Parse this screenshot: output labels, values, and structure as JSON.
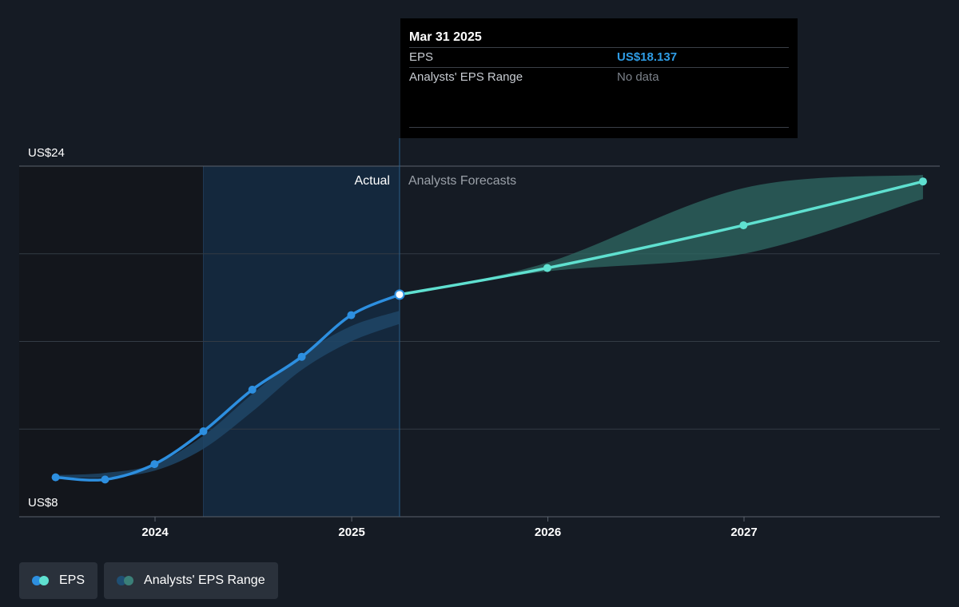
{
  "chart_data": {
    "type": "line",
    "y_axis": {
      "labels": [
        "US$24",
        "US$8"
      ],
      "range": [
        8,
        24
      ]
    },
    "x_axis": {
      "ticks": [
        "2024",
        "2025",
        "2026",
        "2027"
      ],
      "range": [
        "2023-06-15",
        "2027-11-30"
      ]
    },
    "section_labels": {
      "actual": "Actual",
      "forecast": "Analysts Forecasts"
    },
    "series": [
      {
        "name": "EPS",
        "kind": "actual",
        "points": [
          {
            "date": "2023-06-30",
            "value": 9.8
          },
          {
            "date": "2023-09-30",
            "value": 9.7
          },
          {
            "date": "2023-12-31",
            "value": 10.4
          },
          {
            "date": "2024-03-31",
            "value": 11.9
          },
          {
            "date": "2024-06-30",
            "value": 13.8
          },
          {
            "date": "2024-09-30",
            "value": 15.3
          },
          {
            "date": "2024-12-31",
            "value": 17.2
          },
          {
            "date": "2025-03-31",
            "value": 18.137
          }
        ]
      },
      {
        "name": "EPS",
        "kind": "forecast",
        "points": [
          {
            "date": "2025-03-31",
            "value": 18.137
          },
          {
            "date": "2025-12-31",
            "value": 19.35
          },
          {
            "date": "2026-12-31",
            "value": 21.3
          },
          {
            "date": "2027-11-30",
            "value": 23.3
          }
        ]
      },
      {
        "name": "Analysts' EPS Range",
        "kind": "range",
        "points": [
          {
            "date": "2023-06-30",
            "low": 9.8,
            "high": 9.9
          },
          {
            "date": "2023-09-30",
            "low": 9.8,
            "high": 10.0
          },
          {
            "date": "2023-12-31",
            "low": 10.1,
            "high": 10.4
          },
          {
            "date": "2024-03-31",
            "low": 11.1,
            "high": 11.7
          },
          {
            "date": "2024-06-30",
            "low": 12.8,
            "high": 13.6
          },
          {
            "date": "2024-09-30",
            "low": 14.7,
            "high": 15.4
          },
          {
            "date": "2024-12-31",
            "low": 16.0,
            "high": 16.7
          },
          {
            "date": "2025-03-31",
            "low": 16.8,
            "high": 17.4
          }
        ]
      },
      {
        "name": "Analysts' EPS Range",
        "kind": "forecast-range",
        "points": [
          {
            "date": "2025-03-31",
            "low": 18.137,
            "high": 18.137
          },
          {
            "date": "2025-12-31",
            "low": 19.2,
            "high": 19.6
          },
          {
            "date": "2026-12-31",
            "low": 20.0,
            "high": 23.0
          },
          {
            "date": "2027-11-30",
            "low": 22.5,
            "high": 23.6
          }
        ]
      }
    ],
    "grid": true
  },
  "tooltip": {
    "date": "Mar 31 2025",
    "rows": [
      {
        "label": "EPS",
        "value": "US$18.137"
      },
      {
        "label": "Analysts' EPS Range",
        "value": "No data"
      }
    ]
  },
  "legend": {
    "items": [
      {
        "label": "EPS",
        "color_a": "#2d8fe0",
        "color_b": "#5fe0d0"
      },
      {
        "label": "Analysts' EPS Range",
        "color_a": "#1f4f73",
        "color_b": "#3b7f78"
      }
    ]
  },
  "colors": {
    "actual_line": "#2d8fe0",
    "forecast_line": "#5fe0d0",
    "actual_band": "#1e4566",
    "forecast_band": "#2f6a63",
    "highlight_region": "#14283d",
    "past_region": "#13161c",
    "background": "#151b24"
  }
}
